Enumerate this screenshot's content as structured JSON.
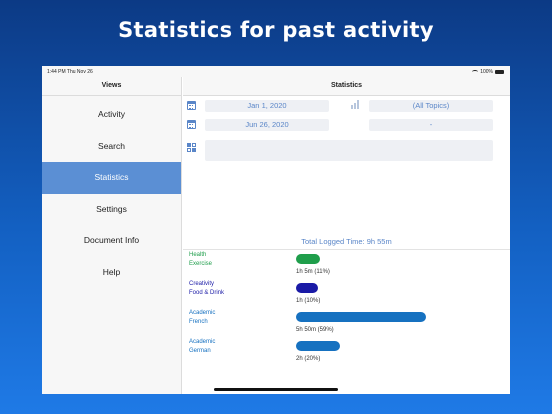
{
  "headline": "Statistics for past activity",
  "status_bar": {
    "time": "1:44 PM  Thu Nov 26",
    "battery": "100%",
    "icons": [
      "wifi-icon",
      "battery-icon"
    ]
  },
  "sidebar": {
    "title": "Views",
    "items": [
      {
        "label": "Activity",
        "selected": false
      },
      {
        "label": "Search",
        "selected": false
      },
      {
        "label": "Statistics",
        "selected": true
      },
      {
        "label": "Settings",
        "selected": false
      },
      {
        "label": "Document Info",
        "selected": false
      },
      {
        "label": "Help",
        "selected": false
      }
    ]
  },
  "main": {
    "title": "Statistics",
    "filters": {
      "start_date": "Jan 1, 2020",
      "end_date": "Jun 26, 2020",
      "topics": "(All Topics)",
      "topic_secondary": "-",
      "tag_filter": ""
    },
    "icons": [
      "calendar-icon",
      "bar-chart-icon",
      "grid-icon"
    ],
    "total_label": "Total Logged Time: 9h 55m",
    "stats": [
      {
        "lines": [
          "Health",
          "Exercise"
        ],
        "value_label": "1h 5m (11%)",
        "percent": 11,
        "color": "#1f9e4b"
      },
      {
        "lines": [
          "Creativity",
          "Food & Drink"
        ],
        "value_label": "1h (10%)",
        "percent": 10,
        "color": "#1a1aa6"
      },
      {
        "lines": [
          "Academic",
          "French"
        ],
        "value_label": "5h 50m (59%)",
        "percent": 59,
        "color": "#1671c0"
      },
      {
        "lines": [
          "Academic",
          "German"
        ],
        "value_label": "2h (20%)",
        "percent": 20,
        "color": "#1671c0"
      }
    ]
  }
}
